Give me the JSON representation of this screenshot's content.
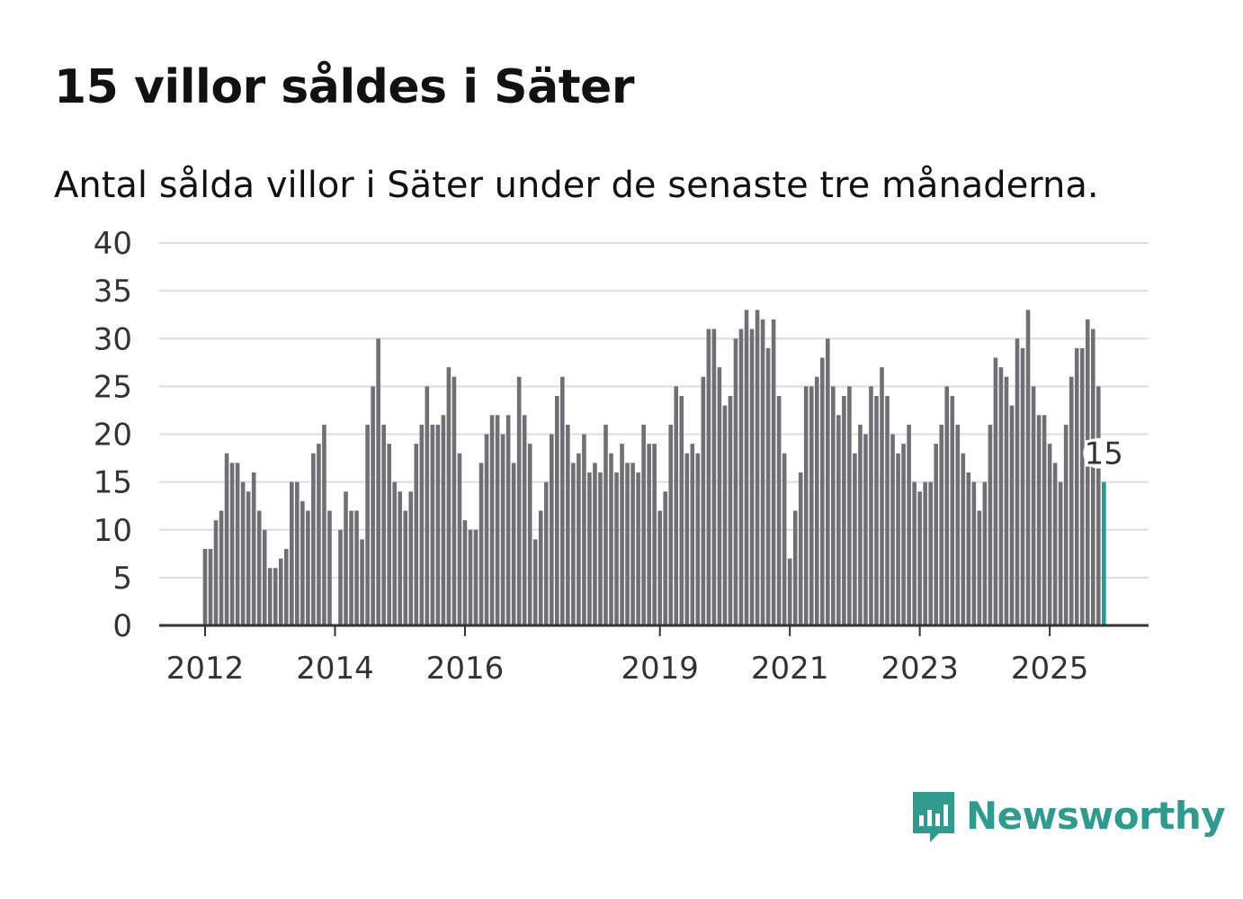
{
  "title": "15 villor såldes i Säter",
  "subtitle": "Antal sålda villor i Säter under de senaste tre månaderna.",
  "brand": {
    "name": "Newsworthy",
    "color": "#2f9a8e",
    "icon": "bar-chart-speech-bubble-icon"
  },
  "colors": {
    "bar": "#6f6f74",
    "highlight": "#1a9e94",
    "grid": "#dddddd",
    "axis": "#333333"
  },
  "chart_data": {
    "type": "bar",
    "title": "15 villor såldes i Säter",
    "xlabel": "",
    "ylabel": "",
    "ylim": [
      0,
      40
    ],
    "yticks": [
      0,
      5,
      10,
      15,
      20,
      25,
      30,
      35,
      40
    ],
    "xticks": [
      {
        "label": "2012",
        "index": 0
      },
      {
        "label": "2014",
        "index": 24
      },
      {
        "label": "2016",
        "index": 48
      },
      {
        "label": "2019",
        "index": 84
      },
      {
        "label": "2021",
        "index": 108
      },
      {
        "label": "2023",
        "index": 132
      },
      {
        "label": "2025",
        "index": 156
      }
    ],
    "highlight_label": "15",
    "series": [
      {
        "name": "Antal sålda villor (senaste tre månaderna)",
        "values": [
          8,
          8,
          11,
          12,
          18,
          17,
          17,
          15,
          14,
          16,
          12,
          10,
          6,
          6,
          7,
          8,
          15,
          15,
          13,
          12,
          18,
          19,
          21,
          12,
          0,
          10,
          14,
          12,
          12,
          9,
          21,
          25,
          30,
          21,
          19,
          15,
          14,
          12,
          14,
          19,
          21,
          25,
          21,
          21,
          22,
          27,
          26,
          18,
          11,
          10,
          10,
          17,
          20,
          22,
          22,
          20,
          22,
          17,
          26,
          22,
          19,
          9,
          12,
          15,
          20,
          24,
          26,
          21,
          17,
          18,
          20,
          16,
          17,
          16,
          21,
          18,
          16,
          19,
          17,
          17,
          16,
          21,
          19,
          19,
          12,
          14,
          21,
          25,
          24,
          18,
          19,
          18,
          26,
          31,
          31,
          27,
          23,
          24,
          30,
          31,
          33,
          31,
          33,
          32,
          29,
          32,
          24,
          18,
          7,
          12,
          16,
          25,
          25,
          26,
          28,
          30,
          25,
          22,
          24,
          25,
          18,
          21,
          20,
          25,
          24,
          27,
          24,
          20,
          18,
          19,
          21,
          15,
          14,
          15,
          15,
          19,
          21,
          25,
          24,
          21,
          18,
          16,
          15,
          12,
          15,
          21,
          28,
          27,
          26,
          23,
          30,
          29,
          33,
          25,
          22,
          22,
          19,
          17,
          15,
          21,
          26,
          29,
          29,
          32,
          31,
          25,
          15
        ]
      }
    ]
  }
}
